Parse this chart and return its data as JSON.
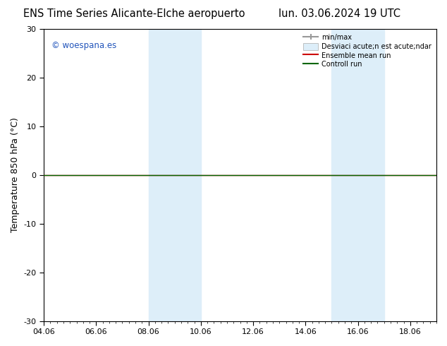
{
  "title_left": "ENS Time Series Alicante-Elche aeropuerto",
  "title_right": "lun. 03.06.2024 19 UTC",
  "ylabel": "Temperature 850 hPa (°C)",
  "background_color": "#ffffff",
  "plot_bg_color": "#ffffff",
  "xlim": [
    0,
    15
  ],
  "xticks": [
    0,
    2,
    4,
    6,
    8,
    10,
    12,
    14
  ],
  "xtick_labels": [
    "04.06",
    "06.06",
    "08.06",
    "10.06",
    "12.06",
    "14.06",
    "16.06",
    "18.06"
  ],
  "ylim": [
    -30,
    30
  ],
  "yticks": [
    -30,
    -20,
    -10,
    0,
    10,
    20,
    30
  ],
  "shaded_regions": [
    {
      "xstart": 4.0,
      "xend": 6.0,
      "color": "#ddeef9"
    },
    {
      "xstart": 11.0,
      "xend": 13.0,
      "color": "#ddeef9"
    }
  ],
  "control_run_color": "#006600",
  "ensemble_mean_color": "#cc0000",
  "watermark_text": "© woespana.es",
  "watermark_color": "#2255bb",
  "legend_labels": [
    "min/max",
    "Desviaci´acute;n est´acute;ndar",
    "Ensemble mean run",
    "Controll run"
  ],
  "legend_label_display": [
    "min/max",
    "Desviaci  acute;n est  acute;ndar",
    "Ensemble mean run",
    "Controll run"
  ],
  "title_fontsize": 10.5,
  "tick_fontsize": 8,
  "ylabel_fontsize": 9
}
